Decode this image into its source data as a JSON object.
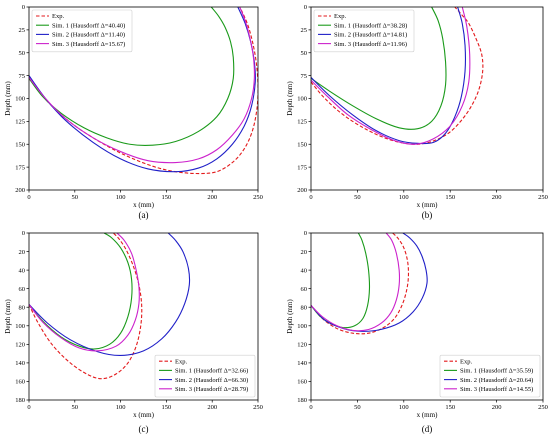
{
  "chart_data": [
    {
      "type": "line",
      "caption": "(a)",
      "xlabel": "x (mm)",
      "ylabel": "Depth (mm)",
      "xlim": [
        0,
        250
      ],
      "ylim": [
        200,
        0
      ],
      "xticks": [
        0,
        50,
        100,
        150,
        200,
        250
      ],
      "yticks": [
        0,
        25,
        50,
        75,
        100,
        125,
        150,
        175,
        200
      ],
      "grid": false,
      "legend_position": "top-left",
      "series": [
        {
          "name": "Exp.",
          "color": "#e31a1c",
          "style": "dashed",
          "x": [
            0,
            20,
            45,
            75,
            105,
            135,
            160,
            185,
            205,
            222,
            235,
            244,
            249,
            250,
            248,
            244,
            239,
            234,
            230
          ],
          "y": [
            78,
            103,
            126,
            146,
            162,
            174,
            180,
            182,
            180,
            170,
            155,
            135,
            110,
            85,
            60,
            38,
            20,
            8,
            0
          ]
        },
        {
          "name": "Sim. 1 (Hausdorff Δ=40.40)",
          "color": "#1a9a1a",
          "style": "solid",
          "x": [
            0,
            15,
            35,
            60,
            85,
            110,
            135,
            160,
            185,
            205,
            217,
            223,
            223,
            220,
            214,
            207,
            199
          ],
          "y": [
            78,
            98,
            116,
            132,
            143,
            150,
            151,
            147,
            136,
            120,
            100,
            78,
            55,
            38,
            22,
            10,
            0
          ]
        },
        {
          "name": "Sim. 2 (Hausdorff Δ=11.40)",
          "color": "#2020c8",
          "style": "solid",
          "x": [
            0,
            18,
            40,
            70,
            100,
            130,
            160,
            185,
            205,
            222,
            235,
            243,
            247,
            246,
            242,
            236,
            228
          ],
          "y": [
            75,
            100,
            124,
            148,
            166,
            177,
            180,
            176,
            166,
            150,
            130,
            108,
            82,
            60,
            38,
            18,
            0
          ]
        },
        {
          "name": "Sim. 3 (Hausdorff Δ=15.67)",
          "color": "#cc22cc",
          "style": "solid",
          "x": [
            0,
            18,
            40,
            70,
            100,
            130,
            160,
            185,
            205,
            222,
            235,
            243,
            246,
            245,
            241,
            236,
            230
          ],
          "y": [
            77,
            100,
            122,
            143,
            158,
            168,
            170,
            166,
            156,
            140,
            122,
            100,
            78,
            55,
            33,
            15,
            0
          ]
        }
      ]
    },
    {
      "type": "line",
      "caption": "(b)",
      "xlabel": "x (mm)",
      "ylabel": "Depth (mm)",
      "xlim": [
        0,
        250
      ],
      "ylim": [
        200,
        0
      ],
      "xticks": [
        0,
        50,
        100,
        150,
        200,
        250
      ],
      "yticks": [
        0,
        25,
        50,
        75,
        100,
        125,
        150,
        175,
        200
      ],
      "grid": false,
      "legend_position": "top-left",
      "series": [
        {
          "name": "Exp.",
          "color": "#e31a1c",
          "style": "dashed",
          "x": [
            0,
            15,
            35,
            60,
            85,
            110,
            130,
            148,
            162,
            173,
            181,
            185,
            184,
            178,
            170,
            162,
            155
          ],
          "y": [
            82,
            100,
            118,
            134,
            145,
            150,
            147,
            138,
            124,
            108,
            90,
            70,
            52,
            35,
            18,
            8,
            0
          ]
        },
        {
          "name": "Sim. 1 (Hausdorff Δ=38.28)",
          "color": "#1a9a1a",
          "style": "solid",
          "x": [
            0,
            20,
            45,
            70,
            95,
            115,
            130,
            140,
            145,
            145,
            142,
            137,
            130
          ],
          "y": [
            78,
            92,
            108,
            122,
            132,
            133,
            125,
            108,
            85,
            60,
            35,
            15,
            0
          ]
        },
        {
          "name": "Sim. 2 (Hausdorff Δ=14.81)",
          "color": "#2020c8",
          "style": "solid",
          "x": [
            0,
            20,
            45,
            70,
            95,
            115,
            132,
            145,
            155,
            162,
            166,
            166,
            163,
            158
          ],
          "y": [
            77,
            97,
            118,
            135,
            146,
            149,
            148,
            138,
            120,
            98,
            70,
            42,
            18,
            0
          ]
        },
        {
          "name": "Sim. 3 (Hausdorff Δ=11.96)",
          "color": "#cc22cc",
          "style": "solid",
          "x": [
            0,
            18,
            40,
            65,
            90,
            112,
            132,
            150,
            163,
            170,
            171,
            168,
            163
          ],
          "y": [
            80,
            98,
            118,
            134,
            146,
            150,
            144,
            130,
            108,
            82,
            52,
            22,
            0
          ]
        }
      ]
    },
    {
      "type": "line",
      "caption": "(c)",
      "xlabel": "x (mm)",
      "ylabel": "Depth (mm)",
      "xlim": [
        0,
        250
      ],
      "ylim": [
        180,
        0
      ],
      "xticks": [
        0,
        50,
        100,
        150,
        200,
        250
      ],
      "yticks": [
        0,
        20,
        40,
        60,
        80,
        100,
        120,
        140,
        160,
        180
      ],
      "grid": false,
      "legend_position": "bottom-right",
      "series": [
        {
          "name": "Exp.",
          "color": "#e31a1c",
          "style": "dashed",
          "x": [
            0,
            10,
            25,
            45,
            65,
            80,
            95,
            108,
            117,
            122,
            123,
            120,
            114,
            106,
            98,
            92
          ],
          "y": [
            77,
            97,
            120,
            140,
            153,
            157,
            152,
            140,
            122,
            100,
            78,
            56,
            36,
            18,
            6,
            0
          ]
        },
        {
          "name": "Sim. 1 (Hausdorff Δ=32.66)",
          "color": "#1a9a1a",
          "style": "solid",
          "x": [
            0,
            15,
            35,
            55,
            72,
            88,
            100,
            108,
            112,
            112,
            108,
            100,
            90,
            82
          ],
          "y": [
            77,
            95,
            112,
            122,
            125,
            120,
            108,
            90,
            70,
            50,
            32,
            16,
            5,
            0
          ]
        },
        {
          "name": "Sim. 2 (Hausdorff Δ=66.30)",
          "color": "#2020c8",
          "style": "solid",
          "x": [
            0,
            20,
            45,
            75,
            100,
            125,
            145,
            160,
            170,
            175,
            174,
            168,
            160,
            152
          ],
          "y": [
            77,
            97,
            115,
            128,
            132,
            127,
            114,
            96,
            76,
            56,
            38,
            20,
            8,
            0
          ]
        },
        {
          "name": "Sim. 3 (Hausdorff Δ=28.79)",
          "color": "#cc22cc",
          "style": "solid",
          "x": [
            0,
            15,
            35,
            55,
            75,
            95,
            108,
            116,
            120,
            120,
            117,
            112,
            104,
            96
          ],
          "y": [
            77,
            96,
            113,
            124,
            127,
            122,
            110,
            94,
            76,
            58,
            40,
            22,
            8,
            0
          ]
        }
      ]
    },
    {
      "type": "line",
      "caption": "(d)",
      "xlabel": "x (mm)",
      "ylabel": "Depth (mm)",
      "xlim": [
        0,
        250
      ],
      "ylim": [
        180,
        0
      ],
      "xticks": [
        0,
        50,
        100,
        150,
        200,
        250
      ],
      "yticks": [
        0,
        20,
        40,
        60,
        80,
        100,
        120,
        140,
        160,
        180
      ],
      "grid": false,
      "legend_position": "bottom-right",
      "series": [
        {
          "name": "Exp.",
          "color": "#e31a1c",
          "style": "dashed",
          "x": [
            0,
            12,
            28,
            45,
            62,
            78,
            90,
            98,
            103,
            105,
            104,
            100,
            94,
            88
          ],
          "y": [
            78,
            92,
            103,
            108,
            108,
            102,
            92,
            78,
            62,
            46,
            30,
            16,
            6,
            0
          ]
        },
        {
          "name": "Sim. 1 (Hausdorff Δ=35.59)",
          "color": "#1a9a1a",
          "style": "solid",
          "x": [
            0,
            10,
            22,
            35,
            47,
            56,
            61,
            63,
            62,
            59,
            55,
            51
          ],
          "y": [
            78,
            90,
            98,
            102,
            100,
            92,
            78,
            60,
            40,
            22,
            8,
            0
          ]
        },
        {
          "name": "Sim. 2 (Hausdorff Δ=20.64)",
          "color": "#2020c8",
          "style": "solid",
          "x": [
            0,
            15,
            35,
            55,
            75,
            95,
            110,
            120,
            125,
            124,
            120,
            114,
            106,
            99
          ],
          "y": [
            78,
            94,
            103,
            106,
            104,
            97,
            85,
            70,
            54,
            40,
            26,
            14,
            5,
            0
          ]
        },
        {
          "name": "Sim. 3 (Hausdorff Δ=14.55)",
          "color": "#cc22cc",
          "style": "solid",
          "x": [
            0,
            12,
            28,
            45,
            62,
            76,
            86,
            92,
            95,
            95,
            92,
            87,
            81
          ],
          "y": [
            78,
            90,
            100,
            105,
            104,
            97,
            86,
            72,
            56,
            40,
            22,
            8,
            0
          ]
        }
      ]
    }
  ]
}
